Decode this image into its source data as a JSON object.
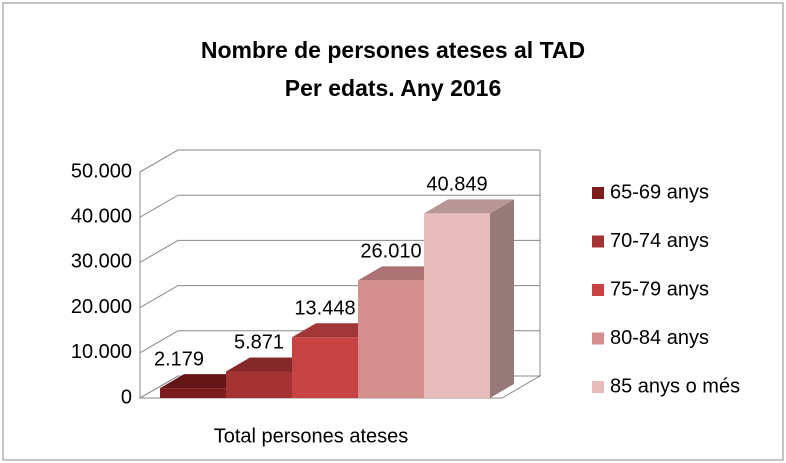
{
  "chart_data": {
    "type": "bar3d",
    "title": "Nombre de persones ateses al TAD",
    "subtitle": "Per edats. Any 2016",
    "categories": [
      "Total persones ateses"
    ],
    "series": [
      {
        "name": "65-69 anys",
        "color": "#7d1c1c",
        "values": [
          2179
        ],
        "value_labels": [
          "2.179"
        ]
      },
      {
        "name": "70-74 anys",
        "color": "#a53333",
        "values": [
          5871
        ],
        "value_labels": [
          "5.871"
        ]
      },
      {
        "name": "75-79 anys",
        "color": "#c84444",
        "values": [
          13448
        ],
        "value_labels": [
          "13.448"
        ]
      },
      {
        "name": "80-84 anys",
        "color": "#d58e8e",
        "values": [
          26010
        ],
        "value_labels": [
          "26.010"
        ]
      },
      {
        "name": "85 anys o més",
        "color": "#e6bcbc",
        "values": [
          40849
        ],
        "value_labels": [
          "40.849"
        ]
      }
    ],
    "ylim": [
      0,
      50000
    ],
    "yticks": [
      {
        "value": 0,
        "label": "0"
      },
      {
        "value": 10000,
        "label": "10.000"
      },
      {
        "value": 20000,
        "label": "20.000"
      },
      {
        "value": 30000,
        "label": "30.000"
      },
      {
        "value": 40000,
        "label": "40.000"
      },
      {
        "value": 50000,
        "label": "50.000"
      }
    ],
    "grid": true,
    "legend": "right"
  }
}
